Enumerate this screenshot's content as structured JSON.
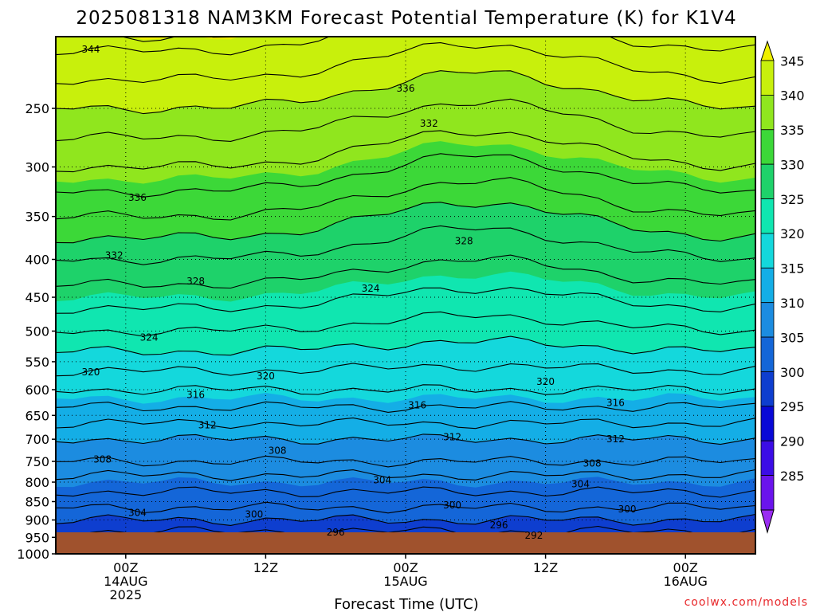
{
  "chart_data": {
    "type": "heatmap",
    "title": "2025081318 NAM3KM Forecast Potential Temperature (K) for K1V4",
    "xlabel": "Forecast Time (UTC)",
    "ylabel": "",
    "y_axis": {
      "scale": "log-pressure",
      "range": [
        1000,
        200
      ],
      "ticks": [
        250,
        300,
        350,
        400,
        450,
        500,
        550,
        600,
        650,
        700,
        750,
        800,
        850,
        900,
        950,
        1000
      ],
      "tick_labels": [
        "250",
        "300",
        "350",
        "400",
        "450",
        "500",
        "550",
        "600",
        "650",
        "700",
        "750",
        "800",
        "850",
        "900",
        "950",
        "1000"
      ]
    },
    "x_axis": {
      "range_hours": [
        -6,
        54
      ],
      "ticks": [
        {
          "hour": 0,
          "label": [
            "00Z",
            "14AUG",
            "2025"
          ]
        },
        {
          "hour": 12,
          "label": [
            "12Z"
          ]
        },
        {
          "hour": 24,
          "label": [
            "00Z",
            "15AUG"
          ]
        },
        {
          "hour": 36,
          "label": [
            "12Z"
          ]
        },
        {
          "hour": 48,
          "label": [
            "00Z",
            "16AUG"
          ]
        }
      ]
    },
    "grid": true,
    "colorbar": {
      "levels": [
        285,
        290,
        295,
        300,
        305,
        310,
        315,
        320,
        325,
        330,
        335,
        340,
        345
      ],
      "labels": [
        "285",
        "290",
        "295",
        "300",
        "305",
        "310",
        "315",
        "320",
        "325",
        "330",
        "335",
        "340",
        "345"
      ],
      "colors": [
        "#9a2cf2",
        "#6a14ec",
        "#3b0ce6",
        "#0808d6",
        "#0e3ecf",
        "#1466d8",
        "#1c8ce0",
        "#14aee6",
        "#14d8dc",
        "#10e6b0",
        "#1ed26a",
        "#3cd838",
        "#90e61e",
        "#c8f00c",
        "#f0f000"
      ],
      "position": "right"
    },
    "field_profile": [
      {
        "p": 980,
        "theta": 294
      },
      {
        "p": 950,
        "theta": 297
      },
      {
        "p": 900,
        "theta": 300
      },
      {
        "p": 850,
        "theta": 303
      },
      {
        "p": 800,
        "theta": 305
      },
      {
        "p": 750,
        "theta": 308
      },
      {
        "p": 700,
        "theta": 310
      },
      {
        "p": 650,
        "theta": 313
      },
      {
        "p": 600,
        "theta": 316
      },
      {
        "p": 550,
        "theta": 319
      },
      {
        "p": 500,
        "theta": 322
      },
      {
        "p": 450,
        "theta": 325
      },
      {
        "p": 400,
        "theta": 328
      },
      {
        "p": 350,
        "theta": 332
      },
      {
        "p": 300,
        "theta": 336
      },
      {
        "p": 250,
        "theta": 340
      },
      {
        "p": 200,
        "theta": 345
      }
    ],
    "contour_labels": [
      {
        "text": "344",
        "hour": -3,
        "p": 208
      },
      {
        "text": "336",
        "hour": 24,
        "p": 235
      },
      {
        "text": "332",
        "hour": 26,
        "p": 262
      },
      {
        "text": "336",
        "hour": 1,
        "p": 330
      },
      {
        "text": "332",
        "hour": -1,
        "p": 395
      },
      {
        "text": "328",
        "hour": 29,
        "p": 378
      },
      {
        "text": "328",
        "hour": 6,
        "p": 428
      },
      {
        "text": "324",
        "hour": 21,
        "p": 438
      },
      {
        "text": "324",
        "hour": 2,
        "p": 510
      },
      {
        "text": "320",
        "hour": -3,
        "p": 568
      },
      {
        "text": "320",
        "hour": 12,
        "p": 575
      },
      {
        "text": "320",
        "hour": 36,
        "p": 585
      },
      {
        "text": "316",
        "hour": 6,
        "p": 610
      },
      {
        "text": "316",
        "hour": 25,
        "p": 630
      },
      {
        "text": "316",
        "hour": 42,
        "p": 625
      },
      {
        "text": "312",
        "hour": 7,
        "p": 670
      },
      {
        "text": "312",
        "hour": 28,
        "p": 695
      },
      {
        "text": "312",
        "hour": 42,
        "p": 700
      },
      {
        "text": "308",
        "hour": -2,
        "p": 745
      },
      {
        "text": "308",
        "hour": 13,
        "p": 725
      },
      {
        "text": "308",
        "hour": 40,
        "p": 755
      },
      {
        "text": "304",
        "hour": 22,
        "p": 795
      },
      {
        "text": "304",
        "hour": 39,
        "p": 805
      },
      {
        "text": "304",
        "hour": 1,
        "p": 880
      },
      {
        "text": "300",
        "hour": 11,
        "p": 885
      },
      {
        "text": "300",
        "hour": 28,
        "p": 860
      },
      {
        "text": "300",
        "hour": 43,
        "p": 870
      },
      {
        "text": "296",
        "hour": 18,
        "p": 935
      },
      {
        "text": "296",
        "hour": 32,
        "p": 915
      },
      {
        "text": "292",
        "hour": 35,
        "p": 945
      }
    ]
  },
  "watermark": "coolwx.com/models"
}
